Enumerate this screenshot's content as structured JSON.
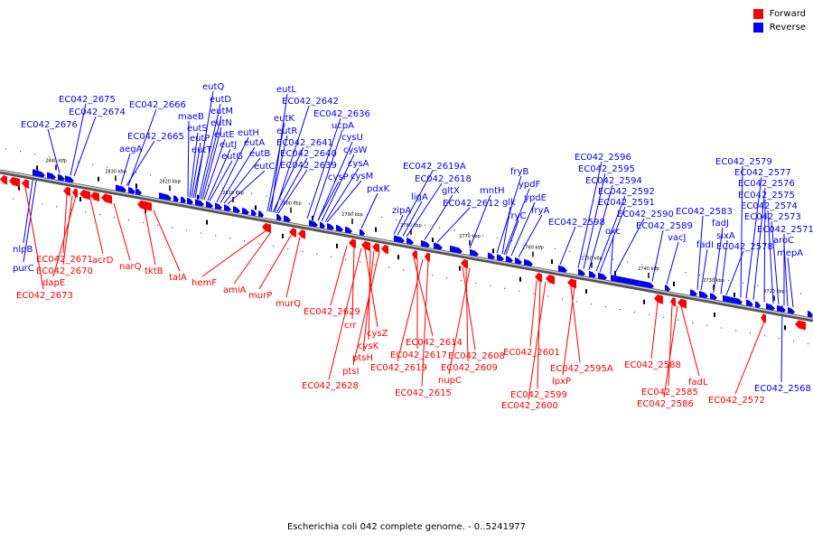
{
  "caption": "Escherichia coli 042 complete genome. - 0..5241977",
  "legend": [
    {
      "label": "Forward",
      "color": "#ff0000"
    },
    {
      "label": "Reverse",
      "color": "#0000ff"
    }
  ],
  "colors": {
    "forward": "#ff0000",
    "reverse": "#0000ff",
    "backbone": "#999999"
  },
  "ticks": [
    {
      "label": "2840 kbp",
      "kbp": 2840
    },
    {
      "label": "2830 kbp",
      "kbp": 2830
    },
    {
      "label": "2820 kbp",
      "kbp": 2820
    },
    {
      "label": "2810 kbp",
      "kbp": 2810
    },
    {
      "label": "2800 kbp",
      "kbp": 2800
    },
    {
      "label": "2790 kbp",
      "kbp": 2790
    },
    {
      "label": "2780 kbp",
      "kbp": 2780
    },
    {
      "label": "2770 kbp",
      "kbp": 2770
    },
    {
      "label": "2760 kbp",
      "kbp": 2760
    },
    {
      "label": "2750 kbp",
      "kbp": 2750
    },
    {
      "label": "2740 kbp",
      "kbp": 2740
    },
    {
      "label": "2730 kbp",
      "kbp": 2730
    },
    {
      "label": "2720 kbp",
      "kbp": 2720
    }
  ],
  "reverse_labels": [
    "EC042_2675",
    "EC042_2674",
    "EC042_2676",
    "EC042_2666",
    "EC042_2665",
    "aegA",
    "eutQ",
    "eutD",
    "eutM",
    "eutN",
    "maeB",
    "eutS",
    "eutP",
    "eutT",
    "eutE",
    "eutJ",
    "eutG",
    "eutH",
    "eutA",
    "eutB",
    "eutC",
    "eutL",
    "EC042_2642",
    "eutK",
    "eutR",
    "EC042_2641",
    "EC042_2640",
    "EC042_2639",
    "EC042_2636",
    "ucpA",
    "cysU",
    "cysW",
    "cysA",
    "cysM",
    "cysP",
    "pdxK",
    "EC042_2619A",
    "EC042_2618",
    "gltX",
    "EC042_2612",
    "ligA",
    "zipA",
    "mntH",
    "fryB",
    "ypdF",
    "glk",
    "ypdE",
    "fryC",
    "fryA",
    "EC042_2598",
    "EC042_2596",
    "EC042_2595",
    "EC042_2594",
    "EC042_2592",
    "EC042_2591",
    "EC042_2590",
    "oxc",
    "EC042_2589",
    "vacJ",
    "EC042_2583",
    "fadJ",
    "fadI",
    "sixA",
    "EC042_2578",
    "EC042_2579",
    "EC042_2577",
    "EC042_2576",
    "EC042_2575",
    "EC042_2574",
    "EC042_2573",
    "EC042_2571",
    "aroC",
    "mepA",
    "nlpB",
    "purC",
    "EC042_2568"
  ],
  "forward_labels": [
    "EC042_2671",
    "EC042_2670",
    "dapE",
    "EC042_2673",
    "acrD",
    "narQ",
    "tktB",
    "talA",
    "hemF",
    "amiA",
    "murP",
    "murQ",
    "EC042_2629",
    "crr",
    "cysZ",
    "cysK",
    "ptsH",
    "ptsI",
    "EC042_2628",
    "EC042_2614",
    "EC042_2617",
    "EC042_2619",
    "EC042_2615",
    "EC042_2608",
    "EC042_2609",
    "nupC",
    "EC042_2601",
    "EC042_2599",
    "EC042_2600",
    "EC042_2595A",
    "lpxP",
    "EC042_2588",
    "EC042_2585",
    "EC042_2586",
    "fadL",
    "EC042_2572"
  ]
}
